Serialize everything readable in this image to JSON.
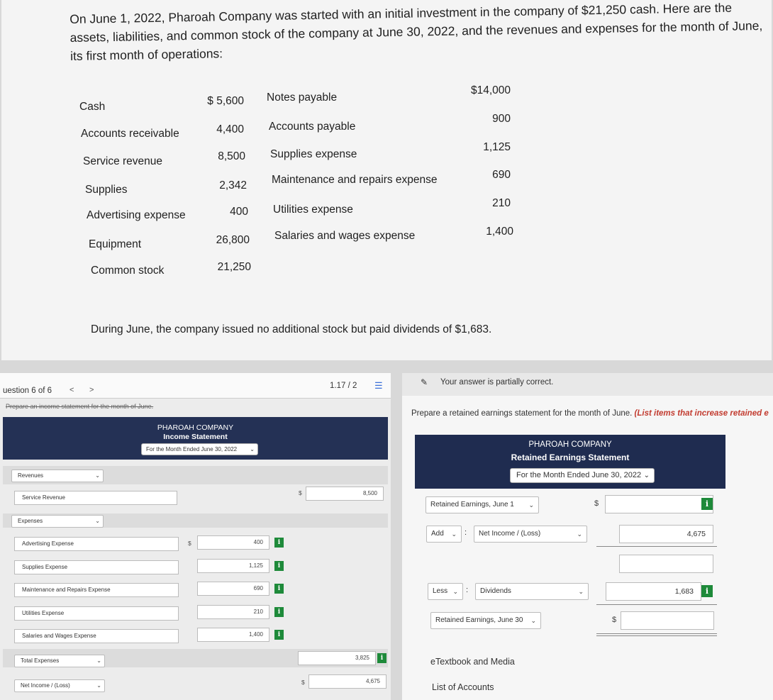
{
  "problem": {
    "intro": "On June 1, 2022, Pharoah Company was started with an initial investment in the company of $21,250 cash. Here are the assets, liabilities, and common stock of the company at June 30, 2022, and the revenues and expenses for the month of June, its first month of operations:",
    "left_accounts": [
      {
        "name": "Cash",
        "amount": "$ 5,600"
      },
      {
        "name": "Accounts receivable",
        "amount": "4,400"
      },
      {
        "name": "Service revenue",
        "amount": "8,500"
      },
      {
        "name": "Supplies",
        "amount": "2,342"
      },
      {
        "name": "Advertising expense",
        "amount": "400"
      },
      {
        "name": "Equipment",
        "amount": "26,800"
      },
      {
        "name": "Common stock",
        "amount": "21,250"
      }
    ],
    "right_accounts": [
      {
        "name": "Notes payable",
        "amount": "$14,000"
      },
      {
        "name": "Accounts payable",
        "amount": "900"
      },
      {
        "name": "Supplies expense",
        "amount": "1,125"
      },
      {
        "name": "Maintenance and repairs expense",
        "amount": "690"
      },
      {
        "name": "Utilities expense",
        "amount": "210"
      },
      {
        "name": "Salaries and wages expense",
        "amount": "1,400"
      }
    ],
    "dividend_note": "During June, the company issued no additional stock but paid dividends of $1,683."
  },
  "income_statement_panel": {
    "question_label": "uestion 6 of 6",
    "prev_arrow": "<",
    "next_arrow": ">",
    "pager": "1.17 / 2",
    "instruction": "Prepare an income statement for the month of June.",
    "company": "PHAROAH COMPANY",
    "title": "Income Statement",
    "period": "For the Month Ended June 30, 2022",
    "revenues_label": "Revenues",
    "service_revenue_label": "Service Revenue",
    "service_revenue_value": "8,500",
    "expenses_label": "Expenses",
    "expense_rows": [
      {
        "label": "Advertising Expense",
        "value": "400"
      },
      {
        "label": "Supplies Expense",
        "value": "1,125"
      },
      {
        "label": "Maintenance and Repairs Expense",
        "value": "690"
      },
      {
        "label": "Utilities Expense",
        "value": "210"
      },
      {
        "label": "Salaries and Wages Expense",
        "value": "1,400"
      }
    ],
    "total_expenses_label": "Total Expenses",
    "total_expenses_value": "3,825",
    "net_income_label": "Net Income / (Loss)",
    "net_income_value": "4,675",
    "dollar": "$",
    "info_symbol": "i"
  },
  "retained_earnings_panel": {
    "status": "Your answer is partially correct.",
    "instruction_plain": "Prepare a retained earnings statement for the month of June. ",
    "instruction_emph": "(List items that increase retained e",
    "company": "PHAROAH COMPANY",
    "title": "Retained Earnings Statement",
    "period": "For the Month Ended June 30, 2022",
    "beginning_label": "Retained Earnings, June 1",
    "add_label": "Add",
    "net_income_label": "Net Income / (Loss)",
    "net_income_value": "4,675",
    "less_label": "Less",
    "dividends_label": "Dividends",
    "dividends_value": "1,683",
    "ending_label": "Retained Earnings, June 30",
    "dollar": "$",
    "colon": ":",
    "info_symbol": "i",
    "links": [
      "eTextbook and Media",
      "List of Accounts"
    ]
  }
}
